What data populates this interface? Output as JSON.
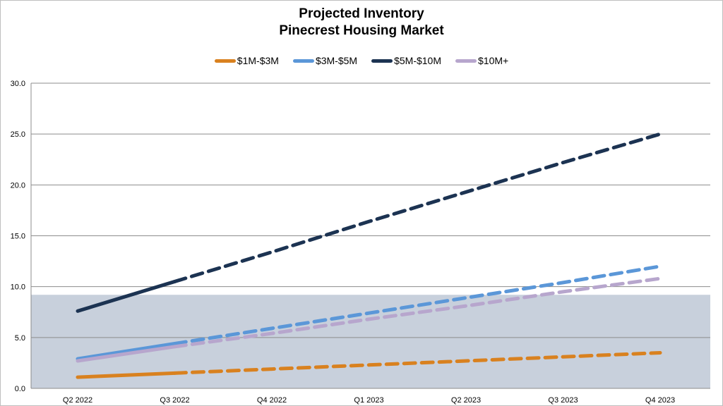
{
  "chart_data": {
    "type": "line",
    "title": [
      "Projected Inventory",
      "Pinecrest Housing Market"
    ],
    "categories": [
      "Q2 2022",
      "Q3 2022",
      "Q4 2022",
      "Q1 2023",
      "Q2 2023",
      "Q3 2023",
      "Q4 2023"
    ],
    "ylim": [
      0,
      30
    ],
    "yticks": [
      "0.0",
      "5.0",
      "10.0",
      "15.0",
      "20.0",
      "25.0",
      "30.0"
    ],
    "grid": true,
    "legend_position": "top-center",
    "shaded_band": {
      "from": 0,
      "to": 9.2,
      "color": "#c8d0dc"
    },
    "solid_until_category": "Q3 2022",
    "series": [
      {
        "name": "$1M-$3M",
        "color": "#d9811f",
        "values": [
          1.1,
          1.5,
          1.9,
          2.3,
          2.7,
          3.1,
          3.5
        ]
      },
      {
        "name": "$3M-$5M",
        "color": "#5b97d8",
        "values": [
          2.9,
          4.4,
          5.9,
          7.4,
          8.9,
          10.4,
          12.0
        ]
      },
      {
        "name": "$5M-$10M",
        "color": "#1c3352",
        "values": [
          7.6,
          10.5,
          13.4,
          16.4,
          19.3,
          22.2,
          25.0
        ]
      },
      {
        "name": "$10M+",
        "color": "#b7a6cd",
        "values": [
          2.7,
          4.1,
          5.4,
          6.8,
          8.1,
          9.5,
          10.8
        ]
      }
    ]
  }
}
